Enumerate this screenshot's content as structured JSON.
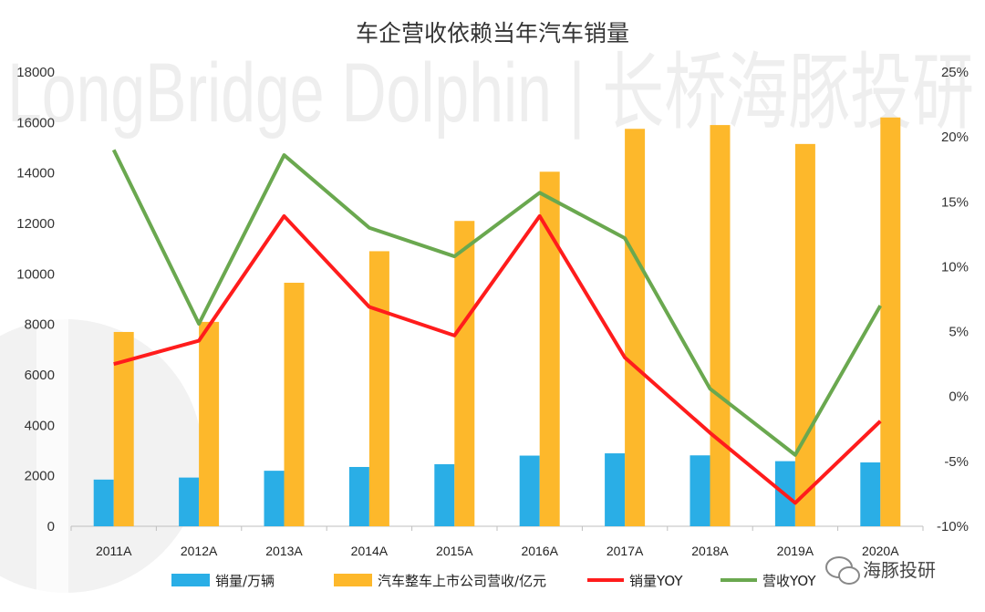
{
  "watermark": {
    "text": "LongBridge Dolphin | 长桥海豚投研",
    "brand_label": "海豚投研"
  },
  "colors": {
    "sales_bar": "#2AAEE6",
    "revenue_bar": "#FDB82B",
    "sales_yoy_line": "#FF1C1C",
    "revenue_yoy_line": "#6AA84F",
    "axis": "#bfbfbf"
  },
  "chart_data": {
    "type": "bar",
    "title": "车企营收依赖当年汽车销量",
    "categories": [
      "2011A",
      "2012A",
      "2013A",
      "2014A",
      "2015A",
      "2016A",
      "2017A",
      "2018A",
      "2019A",
      "2020A"
    ],
    "y_left": {
      "ylim": [
        0,
        18000
      ],
      "ticks": [
        "0",
        "2000",
        "4000",
        "6000",
        "8000",
        "10000",
        "12000",
        "14000",
        "16000",
        "18000"
      ]
    },
    "y_right": {
      "ylim": [
        -10,
        25
      ],
      "ticks": [
        "-10%",
        "-5%",
        "0%",
        "5%",
        "10%",
        "15%",
        "20%",
        "25%"
      ]
    },
    "series": [
      {
        "name": "销量/万辆",
        "kind": "bar",
        "axis": "left",
        "values": [
          1850,
          1930,
          2200,
          2350,
          2460,
          2800,
          2890,
          2810,
          2580,
          2530
        ]
      },
      {
        "name": "汽车整车上市公司营收/亿元",
        "kind": "bar",
        "axis": "left",
        "values": [
          7700,
          8100,
          9650,
          10900,
          12100,
          14050,
          15750,
          15900,
          15150,
          16200
        ]
      },
      {
        "name": "销量YOY",
        "kind": "line",
        "axis": "right",
        "values": [
          2.5,
          4.3,
          13.9,
          6.9,
          4.7,
          13.9,
          3.0,
          -2.8,
          -8.2,
          -1.9
        ]
      },
      {
        "name": "营收YOY",
        "kind": "line",
        "axis": "right",
        "values": [
          19.0,
          5.6,
          18.6,
          13.0,
          10.8,
          15.7,
          12.2,
          0.6,
          -4.5,
          7.0
        ]
      }
    ],
    "legend_position": "bottom",
    "grid": false
  }
}
